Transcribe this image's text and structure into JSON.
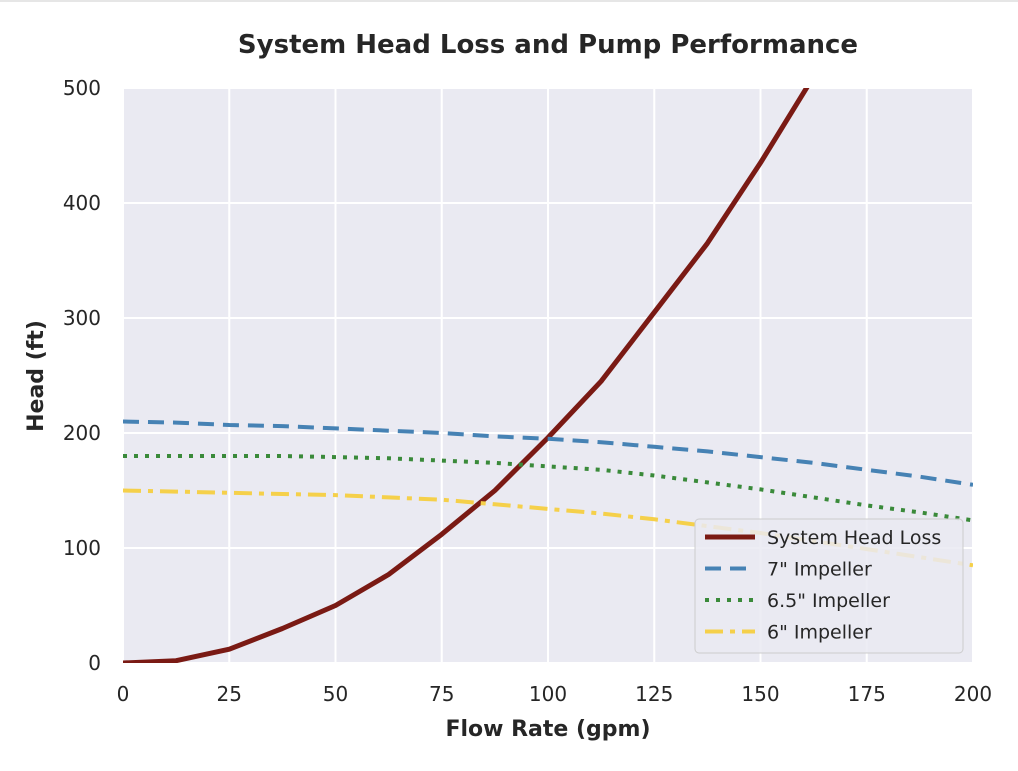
{
  "chart_data": {
    "type": "line",
    "title": "System Head Loss and Pump Performance",
    "xlabel": "Flow Rate (gpm)",
    "ylabel": "Head (ft)",
    "xlim": [
      0,
      200
    ],
    "ylim": [
      0,
      500
    ],
    "xticks": [
      0,
      25,
      50,
      75,
      100,
      125,
      150,
      175,
      200
    ],
    "yticks": [
      0,
      100,
      200,
      300,
      400,
      500
    ],
    "grid": true,
    "legend_position": "lower-right",
    "background_color": "#eaeaf2",
    "grid_color": "#ffffff",
    "x": [
      0,
      12.5,
      25,
      37.5,
      50,
      62.5,
      75,
      87.5,
      100,
      112.5,
      125,
      137.5,
      150,
      162.5,
      175,
      187.5,
      200
    ],
    "series": [
      {
        "name": "System Head Loss",
        "color": "#7a1a14",
        "style": "solid",
        "values": [
          0,
          2,
          12,
          30,
          50,
          77,
          112,
          150,
          196,
          245,
          305,
          365,
          435,
          510,
          null,
          null,
          null
        ]
      },
      {
        "name": "7\" Impeller",
        "color": "#4682b4",
        "style": "dashed",
        "values": [
          210,
          209,
          207,
          206,
          204,
          202,
          200,
          197,
          195,
          192,
          188,
          184,
          179,
          174,
          168,
          162,
          155
        ]
      },
      {
        "name": "6.5\" Impeller",
        "color": "#3a8a3a",
        "style": "dotted",
        "values": [
          180,
          180,
          180,
          180,
          179,
          178,
          176,
          174,
          171,
          168,
          163,
          157,
          151,
          144,
          137,
          131,
          124
        ]
      },
      {
        "name": "6\" Impeller",
        "color": "#f5d04a",
        "style": "dashdot",
        "values": [
          150,
          149,
          148,
          147,
          146,
          144,
          142,
          138,
          134,
          130,
          125,
          119,
          113,
          106,
          99,
          92,
          85
        ]
      }
    ]
  }
}
